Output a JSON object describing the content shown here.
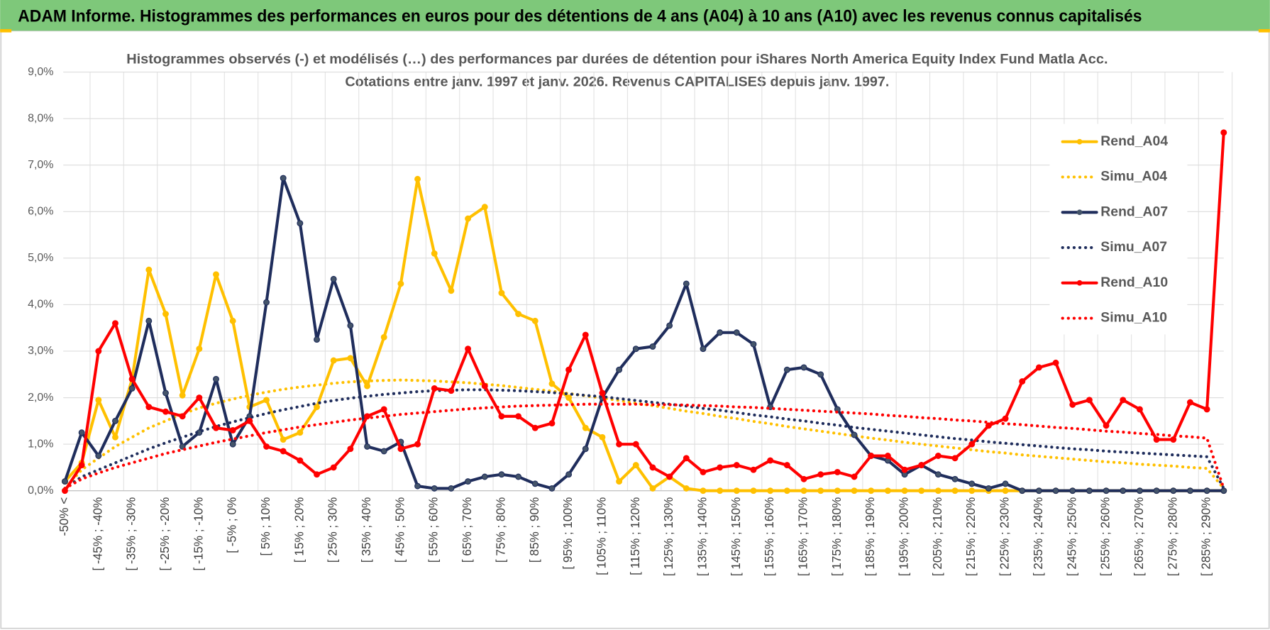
{
  "header": {
    "title": "ADAM Informe. Histogrammes des performances en euros pour des détentions de 4 ans (A04) à 10 ans (A10) avec les revenus connus capitalisés"
  },
  "chart_data": {
    "type": "line",
    "title": "Histogrammes observés (-) et modélisés (…) des performances par durées de détention pour iShares North America Equity Index Fund Matla Acc.",
    "subtitle": "Cotations entre janv. 1997 et janv. 2026. Revenus CAPITALISES depuis janv. 1997.",
    "categories": [
      "-50% <",
      null,
      "[ -45% ; -40%",
      null,
      "[ -35% ; -30%",
      null,
      "[ -25% ; -20%",
      null,
      "[ -15% ; -10%",
      null,
      "[ -5% ; 0%",
      null,
      "[ 5% ; 10%",
      null,
      "[ 15% ; 20%",
      null,
      "[ 25% ; 30%",
      null,
      "[ 35% ; 40%",
      null,
      "[ 45% ; 50%",
      null,
      "[ 55% ; 60%",
      null,
      "[ 65% ; 70%",
      null,
      "[ 75% ; 80%",
      null,
      "[ 85% ; 90%",
      null,
      "[ 95% ; 100%",
      null,
      "[ 105% ; 110%",
      null,
      "[ 115% ; 120%",
      null,
      "[ 125% ; 130%",
      null,
      "[ 135% ; 140%",
      null,
      "[ 145% ; 150%",
      null,
      "[ 155% ; 160%",
      null,
      "[ 165% ; 170%",
      null,
      "[ 175% ; 180%",
      null,
      "[ 185% ; 190%",
      null,
      "[ 195% ; 200%",
      null,
      "[ 205% ; 210%",
      null,
      "[ 215% ; 220%",
      null,
      "[ 225% ; 230%",
      null,
      "[ 235% ; 240%",
      null,
      "[ 245% ; 250%",
      null,
      "[ 255% ; 260%",
      null,
      "[ 265% ; 270%",
      null,
      "[ 275% ; 280%",
      null,
      "[ 285% ; 290%",
      null
    ],
    "series": [
      {
        "name": "Rend_A04",
        "color": "#ffc000",
        "style": "solid",
        "markers": true,
        "values": [
          0.2,
          0.6,
          1.95,
          1.15,
          2.4,
          4.75,
          3.8,
          2.05,
          3.05,
          4.65,
          3.65,
          1.8,
          1.95,
          1.1,
          1.25,
          1.8,
          2.8,
          2.85,
          2.25,
          3.3,
          4.45,
          6.7,
          5.1,
          4.3,
          5.85,
          6.1,
          4.25,
          3.8,
          3.65,
          2.3,
          2.0,
          1.35,
          1.15,
          0.2,
          0.55,
          0.05,
          0.3,
          0.05,
          0,
          0,
          0,
          0,
          0,
          0,
          0,
          0,
          0,
          0,
          0,
          0,
          0,
          0,
          0,
          0,
          0,
          0,
          0,
          0,
          0,
          0,
          0,
          0,
          0,
          0,
          0,
          0,
          0,
          0,
          0,
          0
        ]
      },
      {
        "name": "Simu_A04",
        "color": "#ffc000",
        "style": "dotted",
        "markers": false,
        "values": [
          0.05,
          0.45,
          0.7,
          0.95,
          1.15,
          1.35,
          1.5,
          1.65,
          1.78,
          1.88,
          1.97,
          2.05,
          2.12,
          2.18,
          2.23,
          2.27,
          2.31,
          2.34,
          2.36,
          2.37,
          2.38,
          2.37,
          2.36,
          2.34,
          2.32,
          2.29,
          2.26,
          2.22,
          2.18,
          2.14,
          2.09,
          2.04,
          1.99,
          1.94,
          1.88,
          1.83,
          1.77,
          1.71,
          1.66,
          1.6,
          1.55,
          1.49,
          1.44,
          1.38,
          1.33,
          1.28,
          1.23,
          1.18,
          1.13,
          1.09,
          1.04,
          1.0,
          0.96,
          0.92,
          0.88,
          0.84,
          0.81,
          0.77,
          0.74,
          0.71,
          0.68,
          0.65,
          0.62,
          0.6,
          0.57,
          0.55,
          0.53,
          0.5,
          0.48,
          0.05
        ]
      },
      {
        "name": "Rend_A07",
        "color": "#1f2d5c",
        "style": "solid",
        "markers": true,
        "values": [
          0.2,
          1.25,
          0.75,
          1.5,
          2.2,
          3.65,
          2.1,
          0.95,
          1.25,
          2.4,
          1.0,
          1.6,
          4.05,
          6.72,
          5.75,
          3.25,
          4.55,
          3.55,
          0.95,
          0.85,
          1.05,
          0.1,
          0.05,
          0.05,
          0.2,
          0.3,
          0.35,
          0.3,
          0.15,
          0.05,
          0.35,
          0.9,
          2.0,
          2.6,
          3.05,
          3.1,
          3.55,
          4.45,
          3.05,
          3.4,
          3.4,
          3.15,
          1.8,
          2.6,
          2.65,
          2.5,
          1.75,
          1.2,
          0.75,
          0.65,
          0.35,
          0.55,
          0.35,
          0.25,
          0.15,
          0.05,
          0.15,
          0,
          0,
          0,
          0,
          0,
          0,
          0,
          0,
          0,
          0,
          0,
          0,
          0
        ]
      },
      {
        "name": "Simu_A07",
        "color": "#1f2d5c",
        "style": "dotted",
        "markers": false,
        "values": [
          0.05,
          0.3,
          0.45,
          0.6,
          0.75,
          0.9,
          1.03,
          1.15,
          1.27,
          1.38,
          1.48,
          1.57,
          1.66,
          1.74,
          1.81,
          1.88,
          1.94,
          1.99,
          2.03,
          2.07,
          2.1,
          2.13,
          2.15,
          2.16,
          2.17,
          2.17,
          2.16,
          2.15,
          2.13,
          2.11,
          2.08,
          2.05,
          2.02,
          1.98,
          1.94,
          1.9,
          1.86,
          1.82,
          1.77,
          1.73,
          1.68,
          1.63,
          1.59,
          1.54,
          1.5,
          1.45,
          1.41,
          1.36,
          1.32,
          1.28,
          1.24,
          1.2,
          1.16,
          1.12,
          1.09,
          1.05,
          1.02,
          0.99,
          0.96,
          0.93,
          0.9,
          0.88,
          0.85,
          0.83,
          0.81,
          0.79,
          0.77,
          0.75,
          0.73,
          0.05
        ]
      },
      {
        "name": "Rend_A10",
        "color": "#ff0000",
        "style": "solid",
        "markers": true,
        "values": [
          0.0,
          0.55,
          3.0,
          3.6,
          2.4,
          1.8,
          1.7,
          1.6,
          2.0,
          1.35,
          1.3,
          1.5,
          0.95,
          0.85,
          0.65,
          0.35,
          0.5,
          0.9,
          1.6,
          1.75,
          0.9,
          1.0,
          2.2,
          2.15,
          3.05,
          2.25,
          1.6,
          1.6,
          1.35,
          1.45,
          2.6,
          3.35,
          2.1,
          1.0,
          1.0,
          0.5,
          0.3,
          0.7,
          0.4,
          0.5,
          0.55,
          0.45,
          0.65,
          0.55,
          0.25,
          0.35,
          0.4,
          0.3,
          0.75,
          0.75,
          0.45,
          0.55,
          0.75,
          0.7,
          1.0,
          1.4,
          1.55,
          2.35,
          2.65,
          2.75,
          1.85,
          1.95,
          1.4,
          1.95,
          1.75,
          1.1,
          1.1,
          1.9,
          1.75,
          7.7
        ]
      },
      {
        "name": "Simu_A10",
        "color": "#ff0000",
        "style": "dotted",
        "markers": false,
        "values": [
          0.05,
          0.25,
          0.38,
          0.5,
          0.6,
          0.7,
          0.8,
          0.88,
          0.96,
          1.04,
          1.11,
          1.18,
          1.25,
          1.31,
          1.37,
          1.42,
          1.47,
          1.52,
          1.56,
          1.6,
          1.64,
          1.67,
          1.7,
          1.73,
          1.76,
          1.78,
          1.8,
          1.82,
          1.83,
          1.84,
          1.85,
          1.86,
          1.86,
          1.86,
          1.86,
          1.85,
          1.85,
          1.84,
          1.83,
          1.82,
          1.8,
          1.79,
          1.77,
          1.75,
          1.73,
          1.71,
          1.69,
          1.67,
          1.65,
          1.62,
          1.6,
          1.57,
          1.55,
          1.52,
          1.5,
          1.47,
          1.44,
          1.42,
          1.39,
          1.36,
          1.34,
          1.31,
          1.28,
          1.26,
          1.23,
          1.21,
          1.18,
          1.16,
          1.13,
          0.05
        ]
      }
    ],
    "ylim": [
      0,
      9
    ],
    "yticks": [
      {
        "value": 0,
        "label": "0,0%"
      },
      {
        "value": 1,
        "label": "1,0%"
      },
      {
        "value": 2,
        "label": "2,0%"
      },
      {
        "value": 3,
        "label": "3,0%"
      },
      {
        "value": 4,
        "label": "4,0%"
      },
      {
        "value": 5,
        "label": "5,0%"
      },
      {
        "value": 6,
        "label": "6,0%"
      },
      {
        "value": 7,
        "label": "7,0%"
      },
      {
        "value": 8,
        "label": "8,0%"
      },
      {
        "value": 9,
        "label": "9,0%"
      }
    ],
    "grid": true,
    "legend": "top-right"
  }
}
